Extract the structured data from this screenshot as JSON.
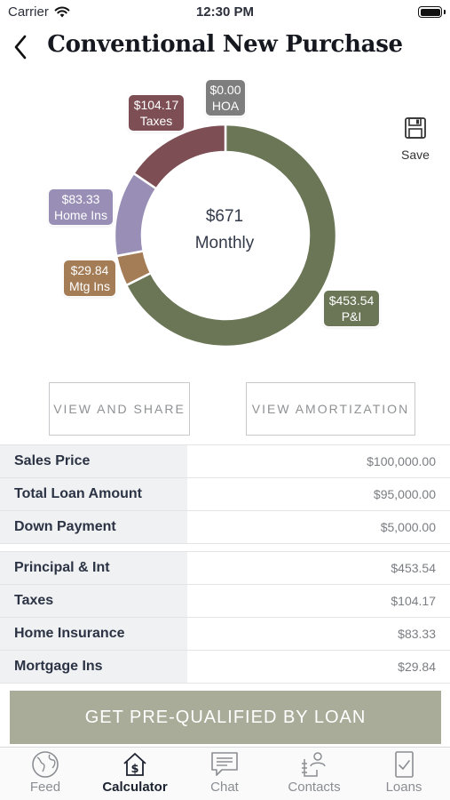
{
  "status_bar": {
    "carrier": "Carrier",
    "time": "12:30 PM"
  },
  "header": {
    "title": "Conventional New Purchase"
  },
  "save": {
    "label": "Save"
  },
  "chart_data": {
    "type": "pie",
    "title": "",
    "center_amount": "$671",
    "center_label": "Monthly",
    "slices": [
      {
        "name": "P&I",
        "value": 453.54,
        "label_amount": "$453.54",
        "color": "#6b7657"
      },
      {
        "name": "Mtg Ins",
        "value": 29.84,
        "label_amount": "$29.84",
        "color": "#a47d57"
      },
      {
        "name": "Home Ins",
        "value": 83.33,
        "label_amount": "$83.33",
        "color": "#998fb6"
      },
      {
        "name": "Taxes",
        "value": 104.17,
        "label_amount": "$104.17",
        "color": "#7d4f55"
      },
      {
        "name": "HOA",
        "value": 0.0,
        "label_amount": "$0.00",
        "color": "#7e7e7e"
      }
    ]
  },
  "actions": {
    "view_share": "VIEW AND SHARE",
    "view_amortization": "VIEW AMORTIZATION"
  },
  "loan_table": [
    {
      "label": "Sales Price",
      "value": "$100,000.00"
    },
    {
      "label": "Total Loan Amount",
      "value": "$95,000.00"
    },
    {
      "label": "Down Payment",
      "value": "$5,000.00"
    }
  ],
  "payment_table": [
    {
      "label": "Principal & Int",
      "value": "$453.54"
    },
    {
      "label": "Taxes",
      "value": "$104.17"
    },
    {
      "label": "Home Insurance",
      "value": "$83.33"
    },
    {
      "label": "Mortgage Ins",
      "value": "$29.84"
    }
  ],
  "cta": {
    "label": "GET PRE-QUALIFIED BY LOAN"
  },
  "tabs": [
    {
      "label": "Feed",
      "icon": "globe-icon",
      "active": false
    },
    {
      "label": "Calculator",
      "icon": "calculator-icon",
      "active": true
    },
    {
      "label": "Chat",
      "icon": "chat-icon",
      "active": false
    },
    {
      "label": "Contacts",
      "icon": "contacts-icon",
      "active": false
    },
    {
      "label": "Loans",
      "icon": "loans-icon",
      "active": false
    }
  ]
}
